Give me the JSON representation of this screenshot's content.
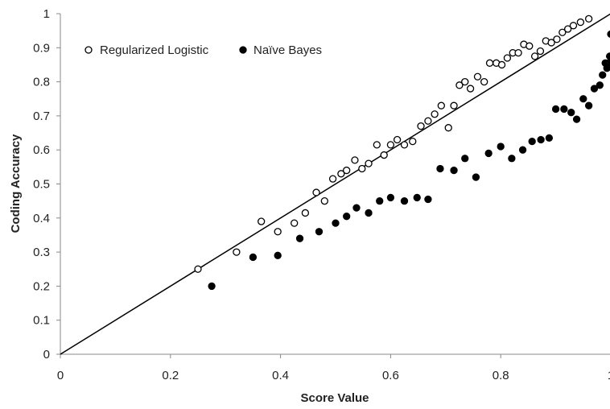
{
  "chart_data": {
    "type": "scatter",
    "xlabel": "Score Value",
    "ylabel": "Coding Accuracy",
    "xlim": [
      0,
      1
    ],
    "ylim": [
      0,
      1
    ],
    "x_ticks": [
      "0",
      "0.2",
      "0.4",
      "0.6",
      "0.8",
      "1"
    ],
    "y_ticks": [
      "0",
      "0.1",
      "0.2",
      "0.3",
      "0.4",
      "0.5",
      "0.6",
      "0.7",
      "0.8",
      "0.9",
      "1"
    ],
    "grid": false,
    "legend_position": "top-left",
    "reference_line": {
      "from": [
        0,
        0
      ],
      "to": [
        1,
        1
      ]
    },
    "series": [
      {
        "name": "Regularized Logistic",
        "marker": "open-circle",
        "x": [
          0.25,
          0.32,
          0.365,
          0.395,
          0.425,
          0.445,
          0.465,
          0.48,
          0.495,
          0.51,
          0.52,
          0.535,
          0.548,
          0.56,
          0.575,
          0.588,
          0.6,
          0.612,
          0.625,
          0.64,
          0.655,
          0.668,
          0.68,
          0.692,
          0.705,
          0.715,
          0.725,
          0.735,
          0.745,
          0.758,
          0.77,
          0.78,
          0.792,
          0.802,
          0.812,
          0.822,
          0.832,
          0.842,
          0.852,
          0.862,
          0.872,
          0.882,
          0.892,
          0.902,
          0.912,
          0.922,
          0.932,
          0.945,
          0.96
        ],
        "y": [
          0.25,
          0.3,
          0.39,
          0.36,
          0.385,
          0.415,
          0.475,
          0.45,
          0.515,
          0.53,
          0.54,
          0.57,
          0.545,
          0.56,
          0.615,
          0.585,
          0.615,
          0.63,
          0.615,
          0.625,
          0.67,
          0.685,
          0.705,
          0.73,
          0.665,
          0.73,
          0.79,
          0.8,
          0.78,
          0.815,
          0.8,
          0.855,
          0.855,
          0.85,
          0.87,
          0.885,
          0.885,
          0.91,
          0.905,
          0.875,
          0.89,
          0.92,
          0.915,
          0.925,
          0.945,
          0.955,
          0.965,
          0.975,
          0.985
        ]
      },
      {
        "name": "Naïve Bayes",
        "marker": "filled-circle",
        "x": [
          0.275,
          0.35,
          0.395,
          0.435,
          0.47,
          0.5,
          0.52,
          0.538,
          0.56,
          0.58,
          0.6,
          0.625,
          0.648,
          0.668,
          0.69,
          0.715,
          0.735,
          0.755,
          0.778,
          0.8,
          0.82,
          0.84,
          0.857,
          0.873,
          0.888,
          0.9,
          0.915,
          0.928,
          0.938,
          0.95,
          0.96,
          0.97,
          0.98,
          0.985,
          0.99,
          0.993,
          0.996,
          0.998,
          1.0
        ],
        "y": [
          0.2,
          0.285,
          0.29,
          0.34,
          0.36,
          0.385,
          0.405,
          0.43,
          0.415,
          0.45,
          0.46,
          0.45,
          0.46,
          0.455,
          0.545,
          0.54,
          0.575,
          0.52,
          0.59,
          0.61,
          0.575,
          0.6,
          0.625,
          0.63,
          0.635,
          0.72,
          0.72,
          0.71,
          0.69,
          0.75,
          0.73,
          0.78,
          0.79,
          0.82,
          0.855,
          0.84,
          0.855,
          0.875,
          0.94
        ]
      }
    ]
  }
}
